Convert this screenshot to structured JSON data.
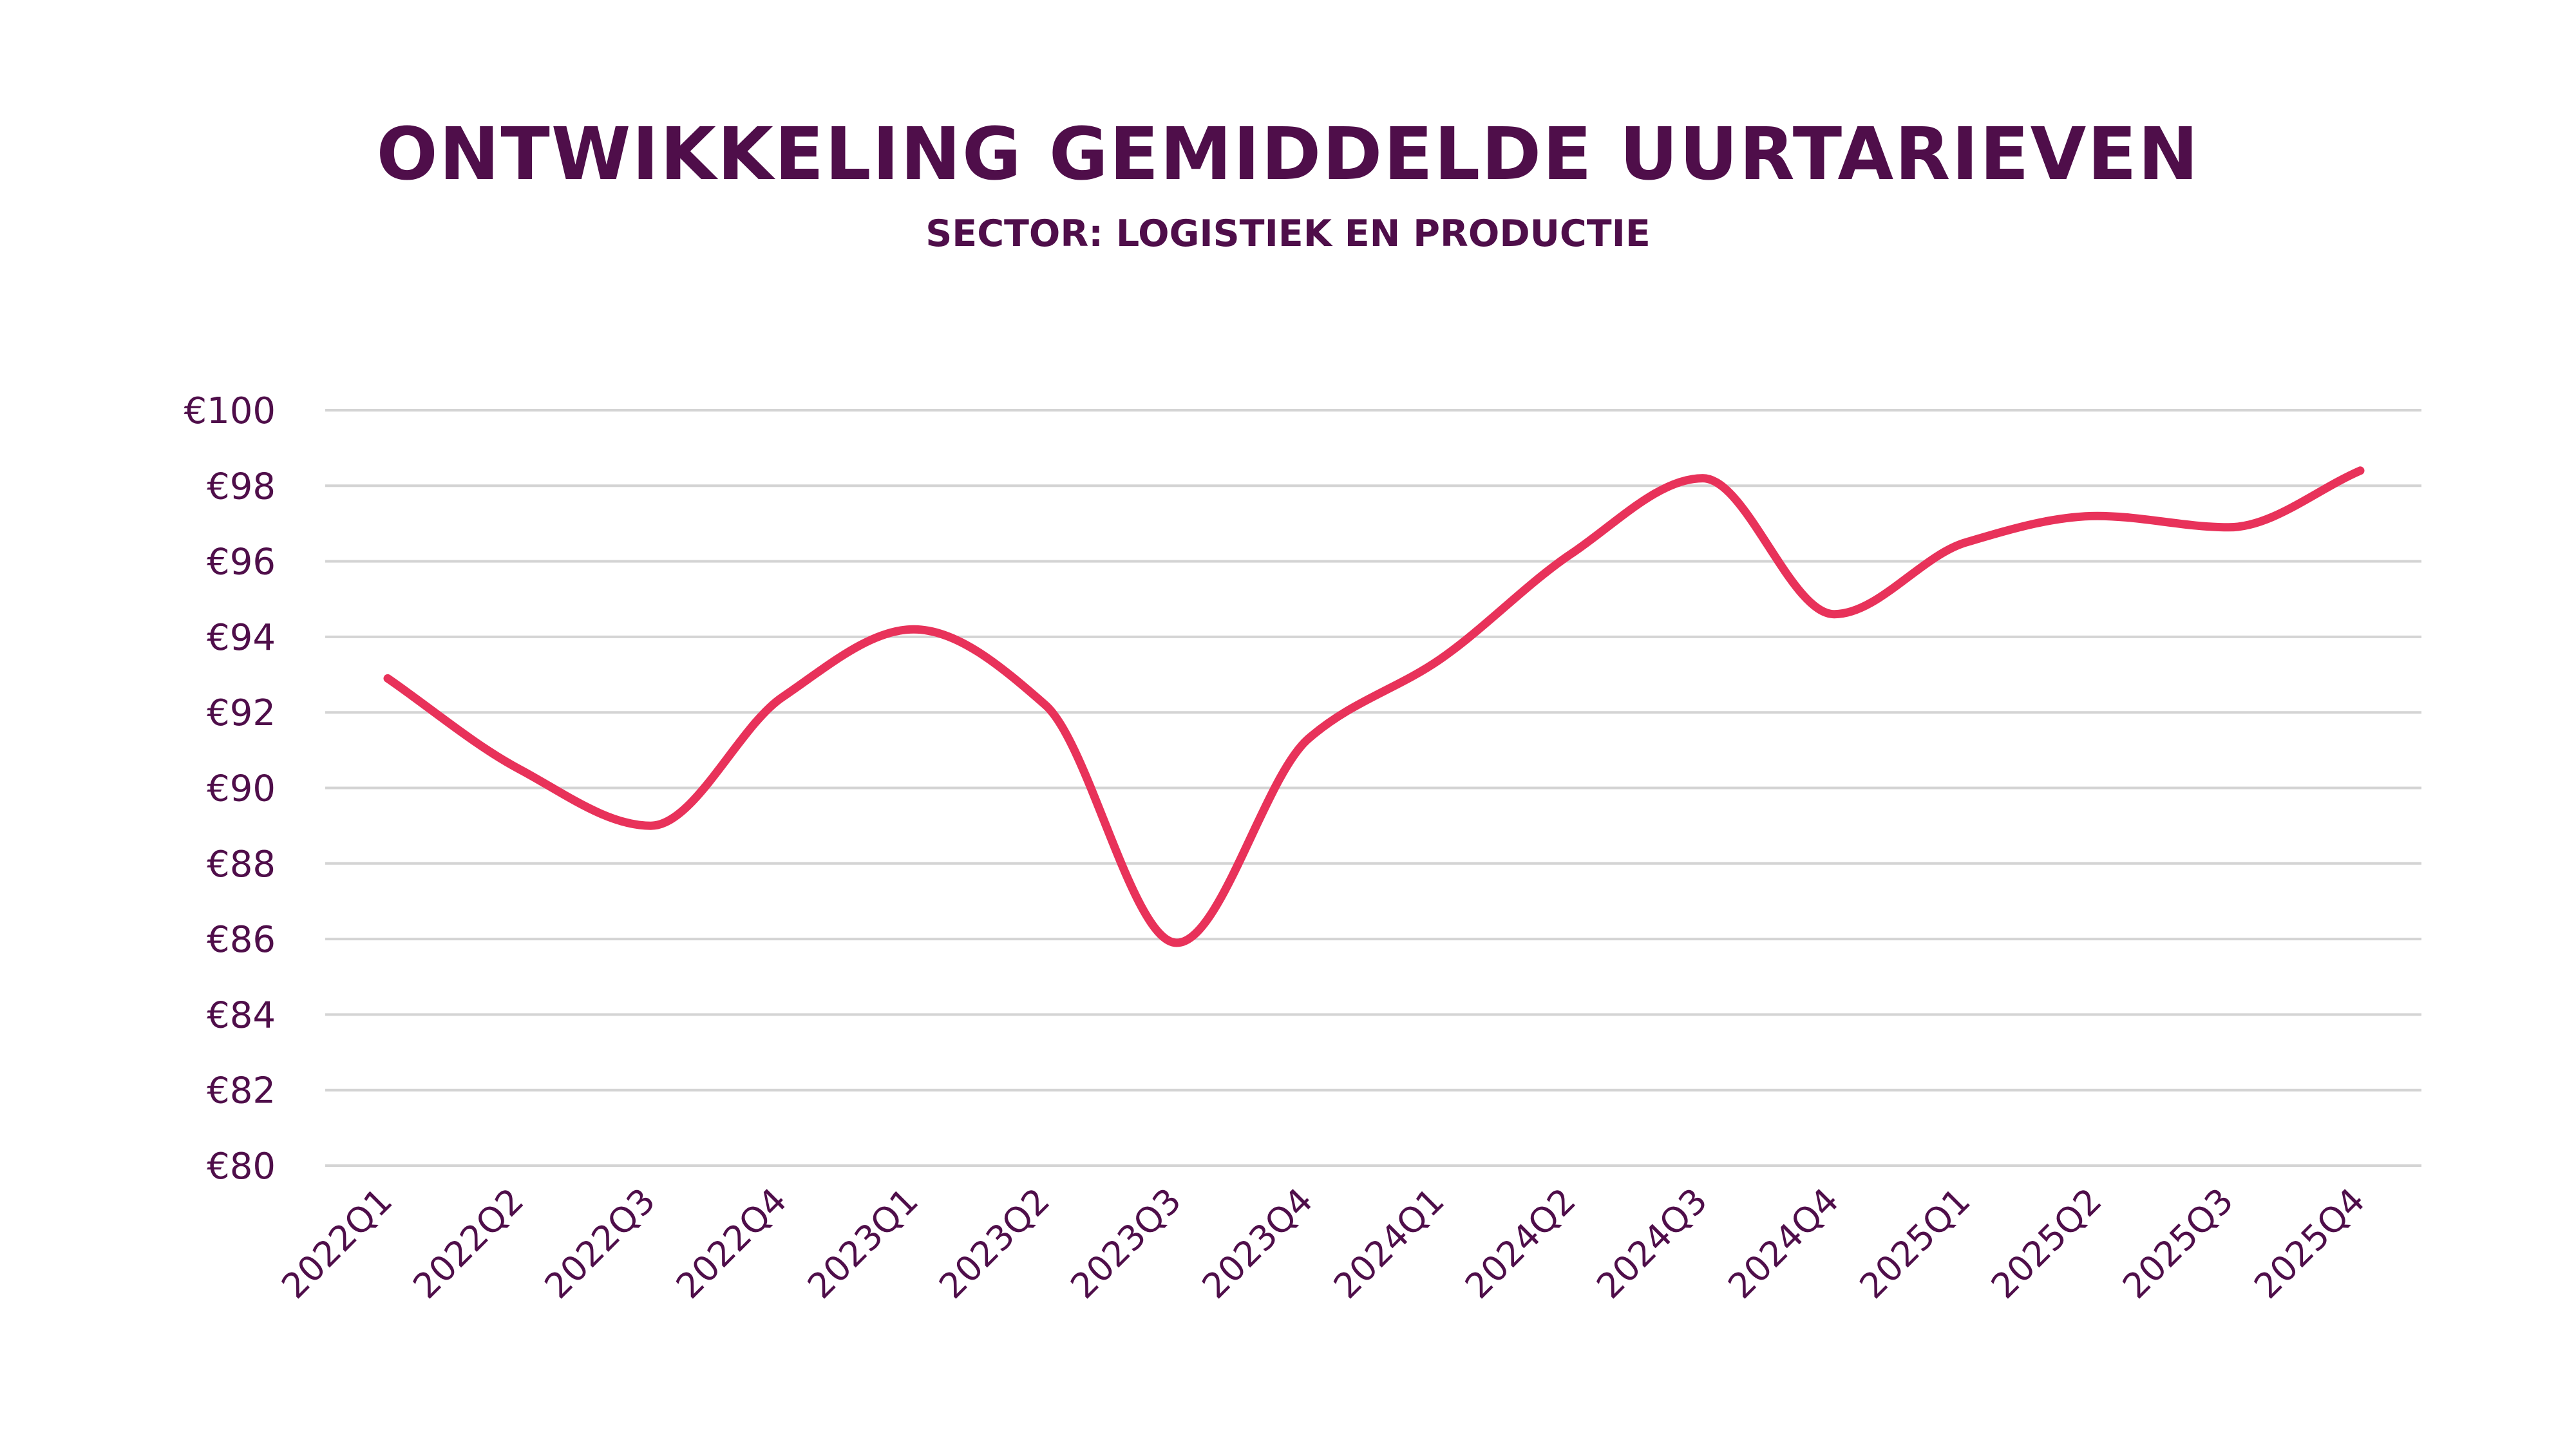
{
  "colors": {
    "title": "#4f0e4a",
    "line": "#e8325a",
    "grid": "#d4d4d4",
    "background": "#ffffff"
  },
  "chart_data": {
    "type": "line",
    "title": "ONTWIKKELING GEMIDDELDE UURTARIEVEN",
    "subtitle": "SECTOR: LOGISTIEK EN PRODUCTIE",
    "xlabel": "",
    "ylabel": "",
    "categories": [
      "2022Q1",
      "2022Q2",
      "2022Q3",
      "2022Q4",
      "2023Q1",
      "2023Q2",
      "2023Q3",
      "2023Q4",
      "2024Q1",
      "2024Q2",
      "2024Q3",
      "2024Q4",
      "2025Q1",
      "2025Q2",
      "2025Q3",
      "2025Q4"
    ],
    "series": [
      {
        "values": [
          92.9,
          90.5,
          89.0,
          92.4,
          94.2,
          92.2,
          85.9,
          91.3,
          93.4,
          96.2,
          98.2,
          94.6,
          96.5,
          97.2,
          96.9,
          98.4
        ]
      }
    ],
    "ylim": [
      80,
      100
    ],
    "yticks": [
      80,
      82,
      84,
      86,
      88,
      90,
      92,
      94,
      96,
      98,
      100
    ],
    "ytick_labels": [
      "€80",
      "€82",
      "€84",
      "€86",
      "€88",
      "€90",
      "€92",
      "€94",
      "€96",
      "€98",
      "€100"
    ],
    "grid": true,
    "smooth": true,
    "legend": "none"
  }
}
